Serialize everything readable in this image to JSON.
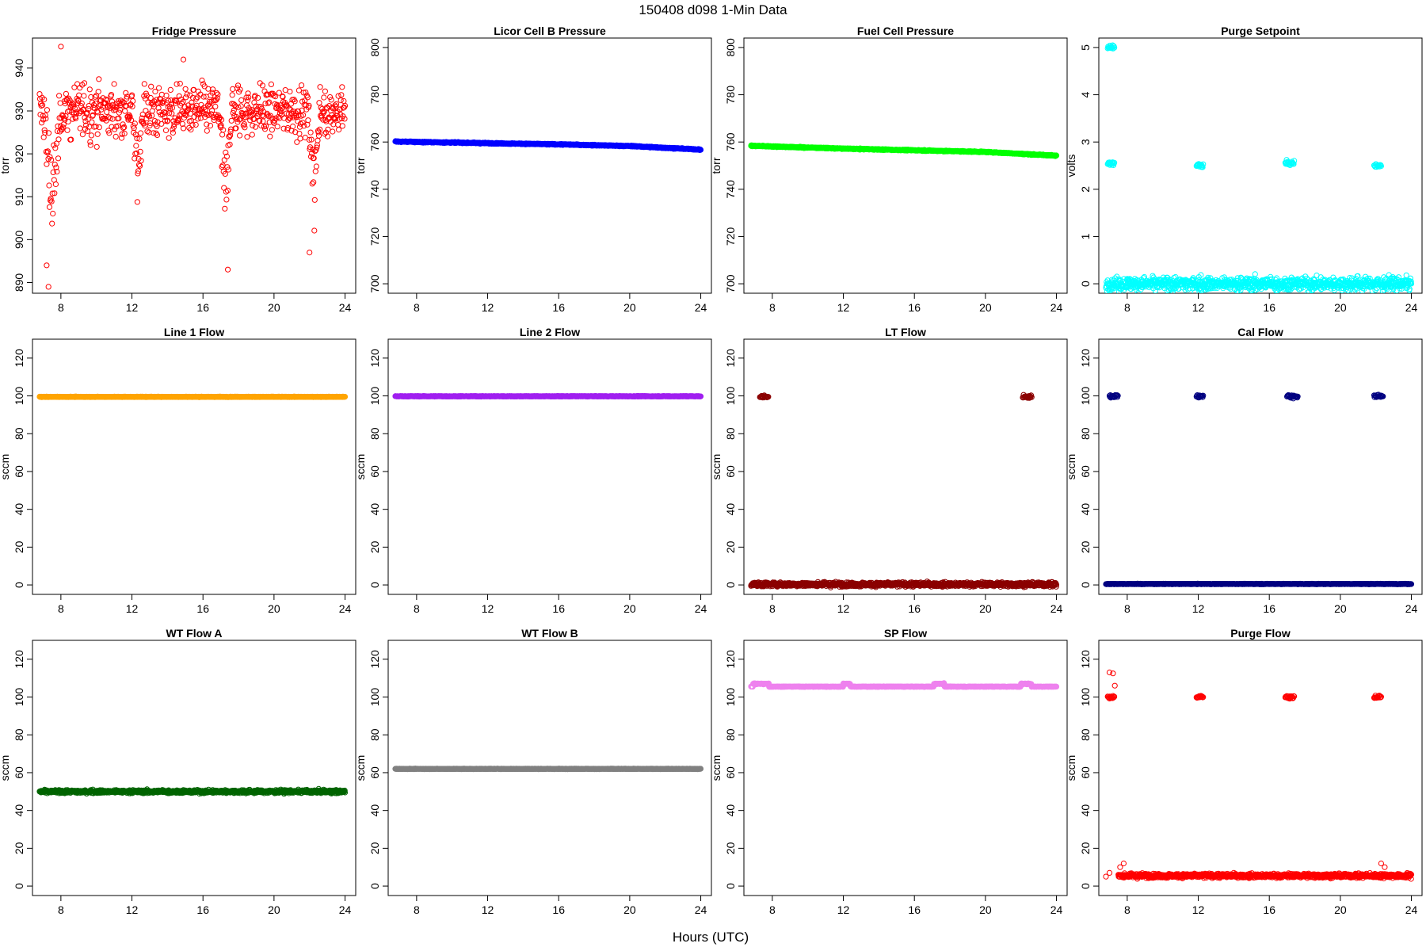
{
  "figure": {
    "title": "150408   d098   1-Min Data",
    "xlabel": "Hours (UTC)"
  },
  "chart_data": [
    {
      "type": "scatter",
      "title": "Fridge Pressure",
      "ylabel": "torr",
      "color": "#ff0000",
      "xlim": [
        6.4,
        24.6
      ],
      "ylim": [
        887.5,
        947
      ],
      "xticks": [
        8,
        12,
        16,
        20,
        24
      ],
      "yticks": [
        890,
        900,
        910,
        920,
        930,
        940
      ],
      "xrange": [
        6.8,
        24
      ],
      "pattern": "fridge"
    },
    {
      "type": "scatter",
      "title": "Licor Cell B Pressure",
      "ylabel": "torr",
      "color": "#0000ff",
      "xlim": [
        6.4,
        24.6
      ],
      "ylim": [
        696,
        804
      ],
      "xticks": [
        8,
        12,
        16,
        20,
        24
      ],
      "yticks": [
        700,
        720,
        740,
        760,
        780,
        800
      ],
      "xrange": [
        6.8,
        24
      ],
      "trend": [
        [
          6.8,
          760.2
        ],
        [
          12,
          759.5
        ],
        [
          16,
          759.0
        ],
        [
          20,
          758.3
        ],
        [
          24,
          756.8
        ]
      ]
    },
    {
      "type": "scatter",
      "title": "Fuel Cell Pressure",
      "ylabel": "torr",
      "color": "#00ff00",
      "xlim": [
        6.4,
        24.6
      ],
      "ylim": [
        696,
        804
      ],
      "xticks": [
        8,
        12,
        16,
        20,
        24
      ],
      "yticks": [
        700,
        720,
        740,
        760,
        780,
        800
      ],
      "xrange": [
        6.8,
        24
      ],
      "trend": [
        [
          6.8,
          758.4
        ],
        [
          12,
          757.2
        ],
        [
          16,
          756.5
        ],
        [
          20,
          755.8
        ],
        [
          24,
          754.2
        ]
      ]
    },
    {
      "type": "scatter",
      "title": "Purge Setpoint",
      "ylabel": "volts",
      "color": "#00ffff",
      "xlim": [
        6.4,
        24.6
      ],
      "ylim": [
        -0.2,
        5.2
      ],
      "xticks": [
        8,
        12,
        16,
        20,
        24
      ],
      "yticks": [
        0,
        1,
        2,
        3,
        4,
        5
      ],
      "xrange": [
        6.8,
        24
      ],
      "base": 0,
      "clusters": [
        {
          "x": [
            6.9,
            7.3
          ],
          "y": 5.0
        },
        {
          "x": [
            6.9,
            7.3
          ],
          "y": 2.55
        },
        {
          "x": [
            11.9,
            12.3
          ],
          "y": 2.5
        },
        {
          "x": [
            16.9,
            17.4
          ],
          "y": 2.55
        },
        {
          "x": [
            21.9,
            22.3
          ],
          "y": 2.5
        }
      ]
    },
    {
      "type": "scatter",
      "title": "Line 1 Flow",
      "ylabel": "sccm",
      "color": "#ffa500",
      "xlim": [
        6.4,
        24.6
      ],
      "ylim": [
        -5,
        130
      ],
      "xticks": [
        8,
        12,
        16,
        20,
        24
      ],
      "yticks": [
        0,
        20,
        40,
        60,
        80,
        100,
        120
      ],
      "xrange": [
        6.8,
        24
      ],
      "base": 99.5
    },
    {
      "type": "scatter",
      "title": "Line 2 Flow",
      "ylabel": "sccm",
      "color": "#a020f0",
      "xlim": [
        6.4,
        24.6
      ],
      "ylim": [
        -5,
        130
      ],
      "xticks": [
        8,
        12,
        16,
        20,
        24
      ],
      "yticks": [
        0,
        20,
        40,
        60,
        80,
        100,
        120
      ],
      "xrange": [
        6.8,
        24
      ],
      "base": 99.8
    },
    {
      "type": "scatter",
      "title": "LT Flow",
      "ylabel": "sccm",
      "color": "#8b0000",
      "xlim": [
        6.4,
        24.6
      ],
      "ylim": [
        -5,
        130
      ],
      "xticks": [
        8,
        12,
        16,
        20,
        24
      ],
      "yticks": [
        0,
        20,
        40,
        60,
        80,
        100,
        120
      ],
      "xrange": [
        6.8,
        24
      ],
      "base": 0.3,
      "clusters": [
        {
          "x": [
            7.3,
            7.8
          ],
          "y": 99.5
        },
        {
          "x": [
            22.1,
            22.6
          ],
          "y": 99.5
        }
      ]
    },
    {
      "type": "scatter",
      "title": "Cal Flow",
      "ylabel": "sccm",
      "color": "#000080",
      "xlim": [
        6.4,
        24.6
      ],
      "ylim": [
        -5,
        130
      ],
      "xticks": [
        8,
        12,
        16,
        20,
        24
      ],
      "yticks": [
        0,
        20,
        40,
        60,
        80,
        100,
        120
      ],
      "xrange": [
        6.8,
        24
      ],
      "base": 0.5,
      "clusters": [
        {
          "x": [
            7.0,
            7.5
          ],
          "y": 99.8
        },
        {
          "x": [
            11.9,
            12.3
          ],
          "y": 99.8
        },
        {
          "x": [
            17.0,
            17.6
          ],
          "y": 99.8
        },
        {
          "x": [
            21.9,
            22.4
          ],
          "y": 99.8
        }
      ]
    },
    {
      "type": "scatter",
      "title": "WT Flow A",
      "ylabel": "sccm",
      "color": "#006400",
      "xlim": [
        6.4,
        24.6
      ],
      "ylim": [
        -5,
        130
      ],
      "xticks": [
        8,
        12,
        16,
        20,
        24
      ],
      "yticks": [
        0,
        20,
        40,
        60,
        80,
        100,
        120
      ],
      "xrange": [
        6.8,
        24
      ],
      "base": 50
    },
    {
      "type": "scatter",
      "title": "WT Flow B",
      "ylabel": "sccm",
      "color": "#808080",
      "xlim": [
        6.4,
        24.6
      ],
      "ylim": [
        -5,
        130
      ],
      "xticks": [
        8,
        12,
        16,
        20,
        24
      ],
      "yticks": [
        0,
        20,
        40,
        60,
        80,
        100,
        120
      ],
      "xrange": [
        6.8,
        24
      ],
      "base": 62
    },
    {
      "type": "scatter",
      "title": "SP Flow",
      "ylabel": "sccm",
      "color": "#ee82ee",
      "xlim": [
        6.4,
        24.6
      ],
      "ylim": [
        -5,
        130
      ],
      "xticks": [
        8,
        12,
        16,
        20,
        24
      ],
      "yticks": [
        0,
        20,
        40,
        60,
        80,
        100,
        120
      ],
      "xrange": [
        6.8,
        24
      ],
      "base": 105.5,
      "bumps": [
        {
          "x": [
            6.9,
            7.8
          ],
          "y": 107
        },
        {
          "x": [
            12.0,
            12.4
          ],
          "y": 107
        },
        {
          "x": [
            17.1,
            17.7
          ],
          "y": 107
        },
        {
          "x": [
            22.0,
            22.6
          ],
          "y": 107
        }
      ]
    },
    {
      "type": "scatter",
      "title": "Purge Flow",
      "ylabel": "sccm",
      "color": "#ff0000",
      "xlim": [
        6.4,
        24.6
      ],
      "ylim": [
        -5,
        130
      ],
      "xticks": [
        8,
        12,
        16,
        20,
        24
      ],
      "yticks": [
        0,
        20,
        40,
        60,
        80,
        100,
        120
      ],
      "xrange": [
        7.5,
        24
      ],
      "base": 5.5,
      "clusters": [
        {
          "x": [
            6.9,
            7.3
          ],
          "y": 100
        },
        {
          "x": [
            11.9,
            12.3
          ],
          "y": 100
        },
        {
          "x": [
            16.9,
            17.4
          ],
          "y": 100
        },
        {
          "x": [
            21.9,
            22.3
          ],
          "y": 100
        }
      ],
      "extra_points": [
        [
          7.0,
          113
        ],
        [
          7.2,
          112.5
        ],
        [
          7.3,
          106
        ],
        [
          6.8,
          5
        ],
        [
          7.0,
          7
        ],
        [
          7.6,
          10
        ],
        [
          7.8,
          12
        ],
        [
          22.3,
          12
        ],
        [
          22.5,
          10
        ]
      ]
    }
  ]
}
